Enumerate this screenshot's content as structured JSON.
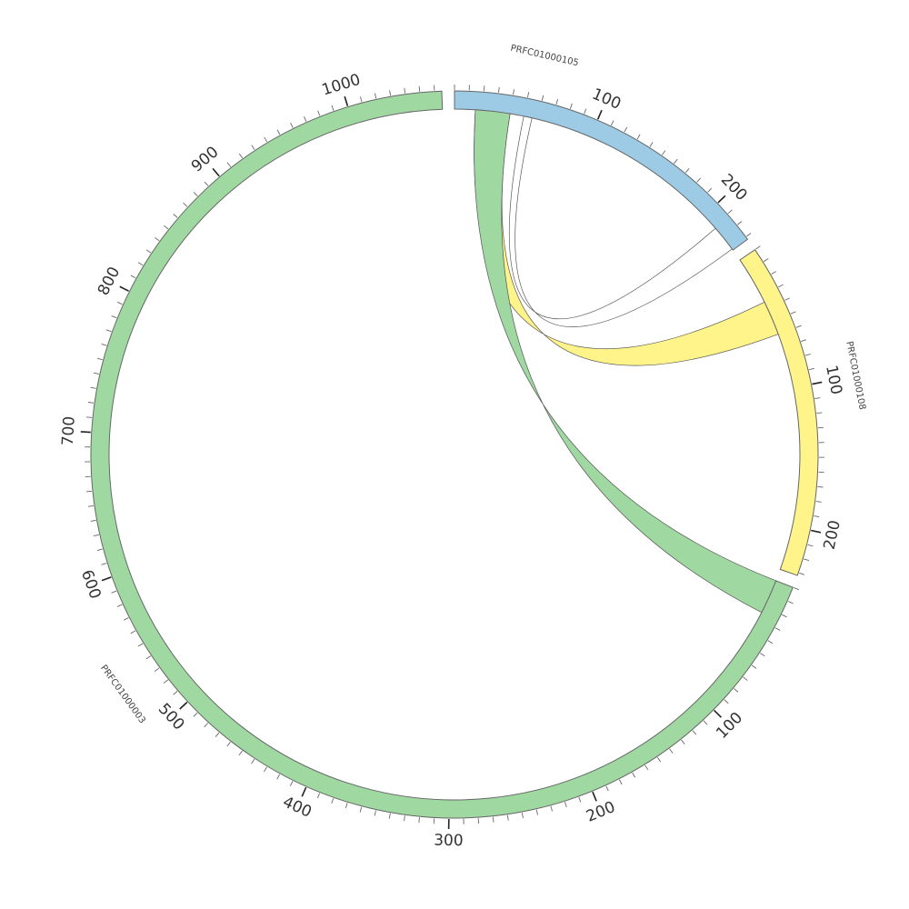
{
  "chart_data": {
    "type": "circos",
    "segments": [
      {
        "id": "seg-105",
        "name": "PRFC01000105",
        "length": 232,
        "color": "#9dcbe6",
        "tick_labels": [
          "100",
          "200"
        ]
      },
      {
        "id": "seg-108",
        "name": "PRFC01000108",
        "length": 232,
        "color": "#fff48a",
        "tick_labels": [
          "100",
          "200"
        ]
      },
      {
        "id": "seg-003",
        "name": "PRFC01000003",
        "length": 1065,
        "color": "#a0d8a2",
        "tick_labels": [
          "100",
          "200",
          "300",
          "400",
          "500",
          "600",
          "700",
          "800",
          "900",
          "1000"
        ]
      }
    ],
    "links": [
      {
        "source_segment": "PRFC01000105",
        "source_range": [
          15,
          40
        ],
        "target_segment": "PRFC01000108",
        "target_range": [
          35,
          60
        ],
        "color": "#fff48a"
      },
      {
        "source_segment": "PRFC01000105",
        "source_range": [
          15,
          40
        ],
        "target_segment": "PRFC01000003",
        "target_range": [
          0,
          25
        ],
        "color": "#a0d8a2"
      },
      {
        "source_segment": "PRFC01000105",
        "source_range": [
          212,
          231
        ],
        "target_segment": "PRFC01000105",
        "target_range": [
          50,
          56
        ],
        "color": "#ffffff"
      }
    ]
  }
}
